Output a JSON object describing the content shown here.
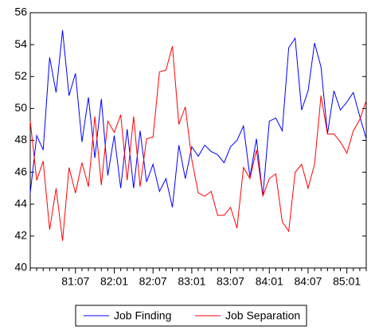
{
  "chart_data": {
    "type": "line",
    "categories": [
      null,
      null,
      null,
      null,
      null,
      null,
      null,
      "81:07",
      null,
      null,
      null,
      null,
      null,
      "82:01",
      null,
      null,
      null,
      null,
      null,
      "82:07",
      null,
      null,
      null,
      null,
      null,
      "83:01",
      null,
      null,
      null,
      null,
      null,
      "83:07",
      null,
      null,
      null,
      null,
      null,
      "84:01",
      null,
      null,
      null,
      null,
      null,
      "84:07",
      null,
      null,
      null,
      null,
      null,
      "85:01",
      null,
      null,
      null
    ],
    "series": [
      {
        "name": "Job Finding",
        "color": "#0000ff",
        "values": [
          44.7,
          48.3,
          47.4,
          53.2,
          51.0,
          54.9,
          50.8,
          52.2,
          47.9,
          50.7,
          46.9,
          50.6,
          45.8,
          48.3,
          45.0,
          48.7,
          45.0,
          48.6,
          45.4,
          46.5,
          44.8,
          45.6,
          43.8,
          47.7,
          45.6,
          47.6,
          47.0,
          47.7,
          47.3,
          47.1,
          46.6,
          47.6,
          48.0,
          48.9,
          45.7,
          48.1,
          44.5,
          49.2,
          49.4,
          48.6,
          53.8,
          54.4,
          49.9,
          51.1,
          54.1,
          52.6,
          48.4,
          51.1,
          49.9,
          50.4,
          51.0,
          49.5,
          48.1
        ]
      },
      {
        "name": "Job Separation",
        "color": "#ff0000",
        "values": [
          49.2,
          45.5,
          46.7,
          42.4,
          45.0,
          41.7,
          46.3,
          44.7,
          46.6,
          45.1,
          49.5,
          45.2,
          49.2,
          48.5,
          49.6,
          45.5,
          49.5,
          45.1,
          48.1,
          48.2,
          52.3,
          52.4,
          53.9,
          49.0,
          50.1,
          46.8,
          44.7,
          44.5,
          44.8,
          43.3,
          43.3,
          43.8,
          42.5,
          46.3,
          45.6,
          47.4,
          44.5,
          45.6,
          45.9,
          42.9,
          42.3,
          46.0,
          46.5,
          45.0,
          46.5,
          50.8,
          48.4,
          48.4,
          47.9,
          47.2,
          48.6,
          49.3,
          50.5
        ]
      }
    ],
    "ylim": [
      40,
      56
    ],
    "yticks": [
      40,
      42,
      44,
      46,
      48,
      50,
      52,
      54,
      56
    ],
    "grid": false,
    "legend": "bottom"
  }
}
